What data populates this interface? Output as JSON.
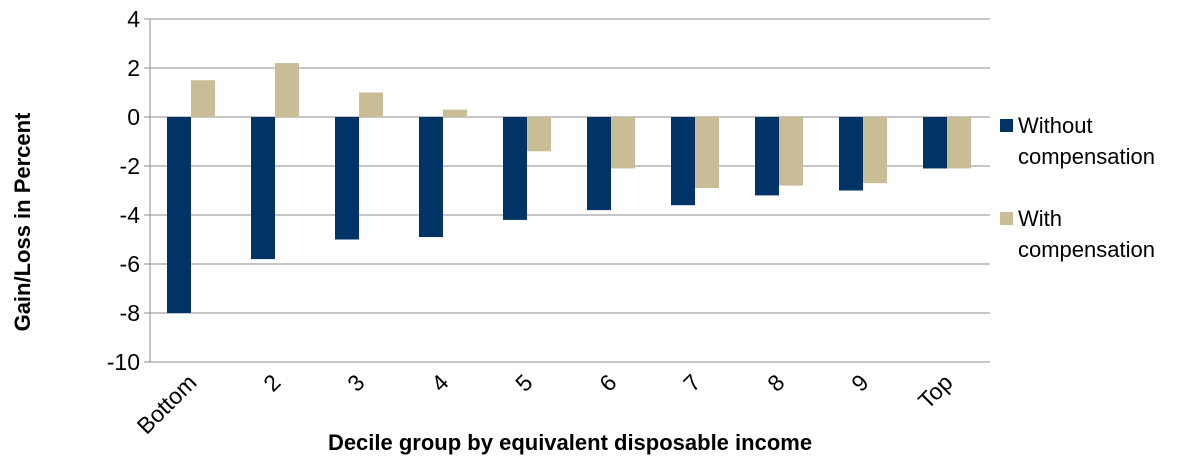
{
  "chart_data": {
    "type": "bar",
    "y_label": "Gain/Loss in Percent",
    "x_label": "Decile group by equivalent disposable income",
    "categories": [
      "Bottom",
      "2",
      "3",
      "4",
      "5",
      "6",
      "7",
      "8",
      "9",
      "Top"
    ],
    "series": [
      {
        "name": "Without compensation",
        "color": "#003366",
        "values": [
          -8.0,
          -5.8,
          -5.0,
          -4.9,
          -4.2,
          -3.8,
          -3.6,
          -3.2,
          -3.0,
          -2.1
        ]
      },
      {
        "name": "With compensation",
        "color": "#c9bd98",
        "values": [
          1.5,
          2.2,
          1.0,
          0.3,
          -1.4,
          -2.1,
          -2.9,
          -2.8,
          -2.7,
          -2.1
        ]
      }
    ],
    "ylim": [
      -10,
      4
    ],
    "yticks": [
      -10,
      -8,
      -6,
      -4,
      -2,
      0,
      2,
      4
    ],
    "grid": true,
    "legend": "right"
  }
}
